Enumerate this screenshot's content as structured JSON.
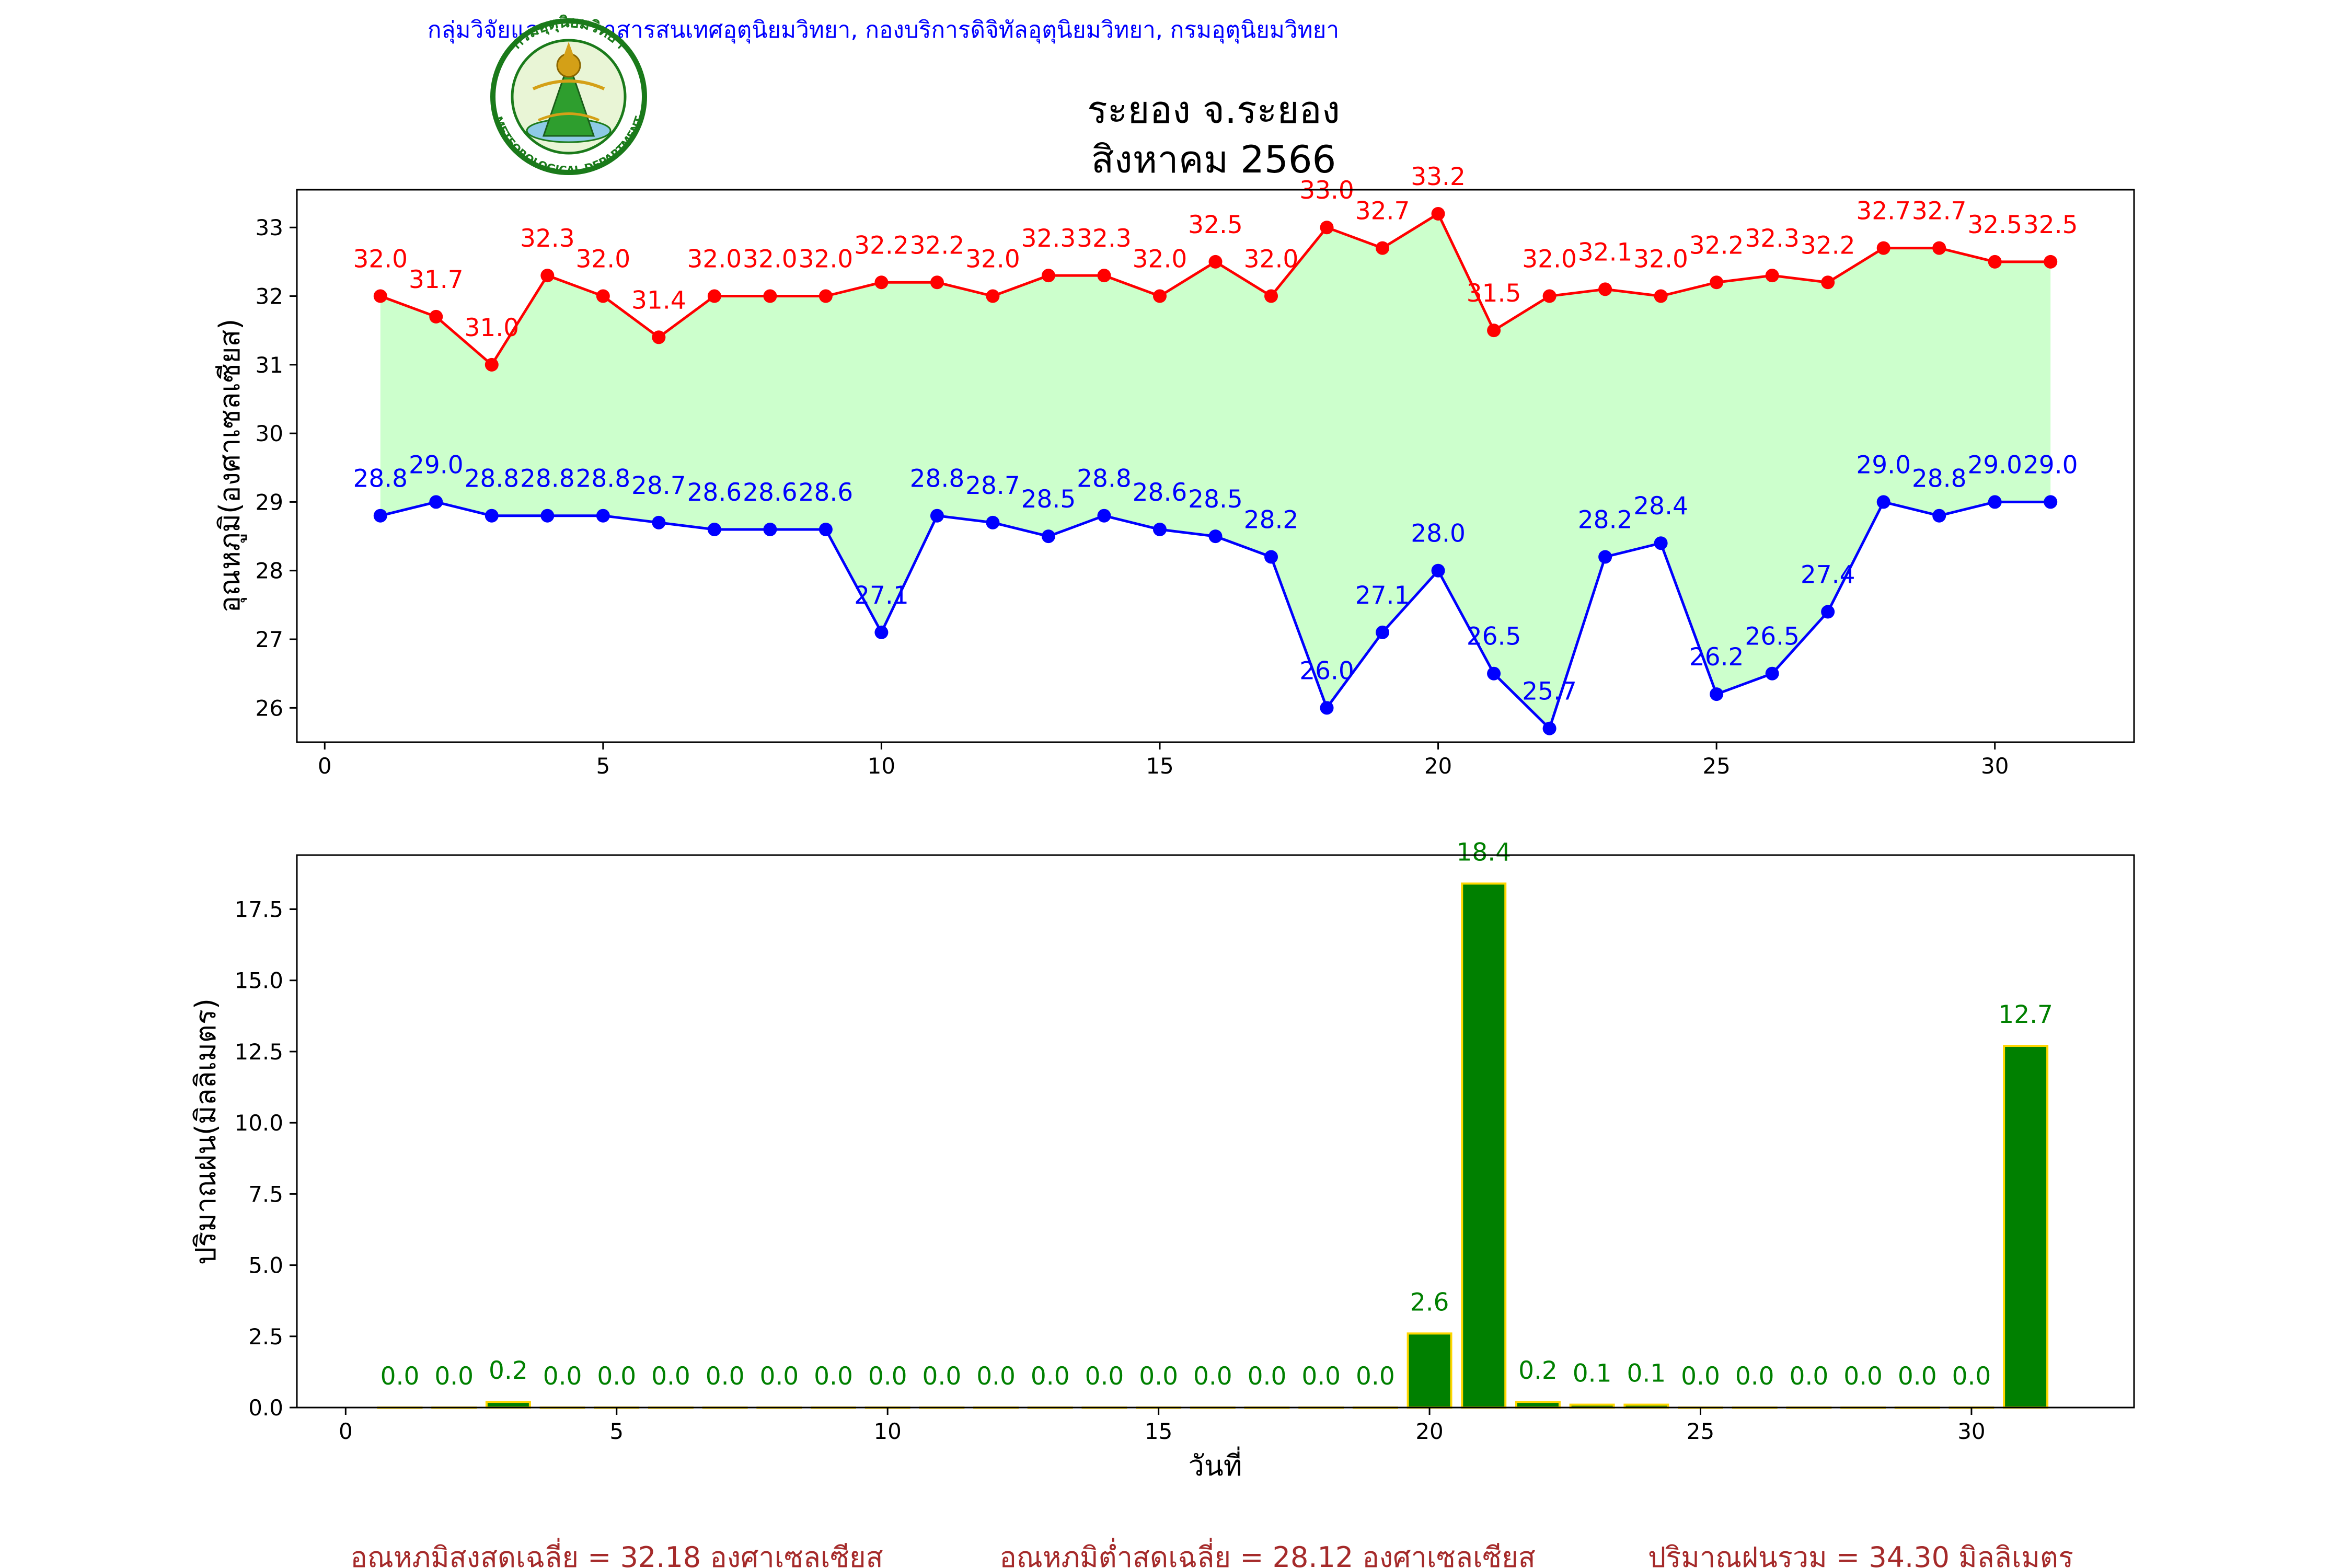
{
  "header": {
    "agency_line": "กลุ่มวิจัยและพัฒนาสารสนเทศอุตุนิยมวิทยา, กองบริการดิจิทัลอุตุนิยมวิทยา, กรมอุตุนิยมวิทยา",
    "logo": {
      "top_text": "กรมอุตุนิยมวิทยา",
      "bottom_text": "METEOROLOGICAL DEPARTMENT"
    },
    "title_line1": "ระยอง จ.ระยอง",
    "title_line2": "สิงหาคม 2566"
  },
  "colors": {
    "max_temp": "#ff0000",
    "min_temp": "#0000ff",
    "fill_between": "#ccffcc",
    "rain_bar": "#008000",
    "rain_bar_edge": "#ffd700",
    "agency_text": "#0000ff",
    "summary_text": "#a52a2a"
  },
  "chart_data": [
    {
      "type": "line",
      "x": [
        1,
        2,
        3,
        4,
        5,
        6,
        7,
        8,
        9,
        10,
        11,
        12,
        13,
        14,
        15,
        16,
        17,
        18,
        19,
        20,
        21,
        22,
        23,
        24,
        25,
        26,
        27,
        28,
        29,
        30,
        31
      ],
      "series": [
        {
          "values": [
            32.0,
            31.7,
            31.0,
            32.3,
            32.0,
            31.4,
            32.0,
            32.0,
            32.0,
            32.2,
            32.2,
            32.0,
            32.3,
            32.3,
            32.0,
            32.5,
            32.0,
            33.0,
            32.7,
            33.2,
            31.5,
            32.0,
            32.1,
            32.0,
            32.2,
            32.3,
            32.2,
            32.7,
            32.7,
            32.5,
            32.5
          ],
          "color": "#ff0000"
        },
        {
          "values": [
            28.8,
            29.0,
            28.8,
            28.8,
            28.8,
            28.7,
            28.6,
            28.6,
            28.6,
            27.1,
            28.8,
            28.7,
            28.5,
            28.8,
            28.6,
            28.5,
            28.2,
            26.0,
            27.1,
            28.0,
            26.5,
            25.7,
            28.2,
            28.4,
            26.2,
            26.5,
            27.4,
            29.0,
            28.8,
            29.0,
            29.0
          ],
          "color": "#0000ff"
        }
      ],
      "ylabel": "อุณหภูมิ(องศาเซลเซียส)",
      "xlim": [
        -0.5,
        32.5
      ],
      "ylim": [
        25.5,
        33.55
      ],
      "xticks": [
        0,
        5,
        10,
        15,
        20,
        25,
        30
      ],
      "yticks": [
        26,
        27,
        28,
        29,
        30,
        31,
        32,
        33
      ]
    },
    {
      "type": "bar",
      "x": [
        1,
        2,
        3,
        4,
        5,
        6,
        7,
        8,
        9,
        10,
        11,
        12,
        13,
        14,
        15,
        16,
        17,
        18,
        19,
        20,
        21,
        22,
        23,
        24,
        25,
        26,
        27,
        28,
        29,
        30,
        31
      ],
      "values": [
        0.0,
        0.0,
        0.2,
        0.0,
        0.0,
        0.0,
        0.0,
        0.0,
        0.0,
        0.0,
        0.0,
        0.0,
        0.0,
        0.0,
        0.0,
        0.0,
        0.0,
        0.0,
        0.0,
        2.6,
        18.4,
        0.2,
        0.1,
        0.1,
        0.0,
        0.0,
        0.0,
        0.0,
        0.0,
        0.0,
        12.7
      ],
      "ylabel": "ปริมาณฝน(มิลลิเมตร)",
      "xlabel": "วันที่",
      "xlim": [
        -0.9,
        33.0
      ],
      "ylim": [
        0,
        19.4
      ],
      "xticks": [
        0,
        5,
        10,
        15,
        20,
        25,
        30
      ],
      "yticks": [
        "0.0",
        "2.5",
        "5.0",
        "7.5",
        "10.0",
        "12.5",
        "15.0",
        "17.5"
      ]
    }
  ],
  "summary": {
    "avg_max": "อุณหภูมิสูงสุดเฉลี่ย = 32.18 องศาเซลเซียส",
    "avg_min": "อุณหภูมิต่ำสุดเฉลี่ย = 28.12 องศาเซลเซียส",
    "total_rain": "ปริมาณฝนรวม = 34.30 มิลลิเมตร"
  }
}
